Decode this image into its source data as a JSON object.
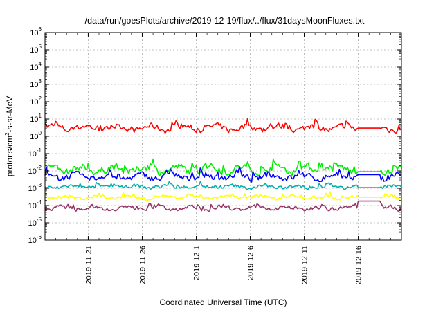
{
  "chart_data": {
    "type": "line",
    "title": "/data/run/goesPlots/archive/2019-12-19/flux/../flux/31daysMoonFluxes.txt",
    "xlabel": "Coordinated Universal Time (UTC)",
    "ylabel": "protons/cm2-s-sr-MeV",
    "ylabel_parts": {
      "pre": "protons/cm",
      "sup": "2",
      "post": "-s-sr-MeV"
    },
    "x_range": [
      "2019-11-17",
      "2019-12-20"
    ],
    "x_ticks": [
      "2019-11-21",
      "2019-11-26",
      "2019-12-1",
      "2019-12-6",
      "2019-12-11",
      "2019-12-16"
    ],
    "y_scale": "log",
    "ylim": [
      1e-06,
      1000000.0
    ],
    "y_ticks": [
      {
        "base": "10",
        "exp": "-6"
      },
      {
        "base": "10",
        "exp": "-5"
      },
      {
        "base": "10",
        "exp": "-4"
      },
      {
        "base": "10",
        "exp": "-3"
      },
      {
        "base": "10",
        "exp": "-2"
      },
      {
        "base": "10",
        "exp": "-1"
      },
      {
        "base": "10",
        "exp": "0"
      },
      {
        "base": "10",
        "exp": "1"
      },
      {
        "base": "10",
        "exp": "2"
      },
      {
        "base": "10",
        "exp": "3"
      },
      {
        "base": "10",
        "exp": "4"
      },
      {
        "base": "10",
        "exp": "5"
      },
      {
        "base": "10",
        "exp": "6"
      }
    ],
    "grid": true,
    "gap": [
      "2019-12-16",
      "2019-12-18"
    ],
    "series": [
      {
        "color": "#ff0000",
        "baseline": 3.0,
        "spread": 0.45,
        "gap_level": 3.0
      },
      {
        "color": "#00ee00",
        "baseline": 0.012,
        "spread": 0.55,
        "gap_level": 0.009
      },
      {
        "color": "#0000ff",
        "baseline": 0.0045,
        "spread": 0.45,
        "gap_level": 0.006
      },
      {
        "color": "#00b0b0",
        "baseline": 0.0012,
        "spread": 0.25,
        "gap_level": 0.0011
      },
      {
        "color": "#ffff00",
        "baseline": 0.0003,
        "spread": 0.25,
        "gap_level": 0.0003
      },
      {
        "color": "#993366",
        "baseline": 7e-05,
        "spread": 0.3,
        "gap_level": 0.00018
      }
    ]
  }
}
